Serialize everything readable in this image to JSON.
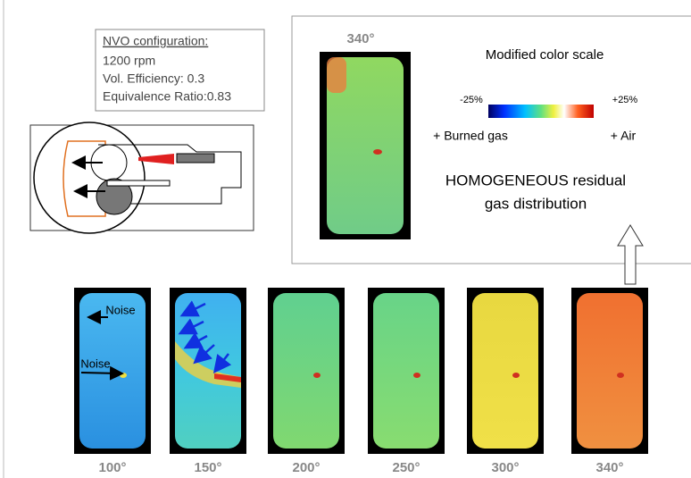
{
  "config_box": {
    "title": "NVO configuration:",
    "lines": [
      "1200 rpm",
      "Vol. Efficiency: 0.3",
      "Equivalence Ratio:0.83"
    ]
  },
  "top_panel": {
    "angle": "340°",
    "scale_title": "Modified color scale",
    "scale_min": "-25%",
    "scale_max": "+25%",
    "left_note": "+ Burned gas",
    "right_note": "+ Air",
    "conclusion": [
      "HOMOGENEOUS residual",
      "gas distribution"
    ]
  },
  "frames": [
    {
      "angle": "100°",
      "annotations": [
        "Noise",
        "Noise"
      ]
    },
    {
      "angle": "150°"
    },
    {
      "angle": "200°"
    },
    {
      "angle": "250°"
    },
    {
      "angle": "300°"
    },
    {
      "angle": "340°"
    }
  ]
}
